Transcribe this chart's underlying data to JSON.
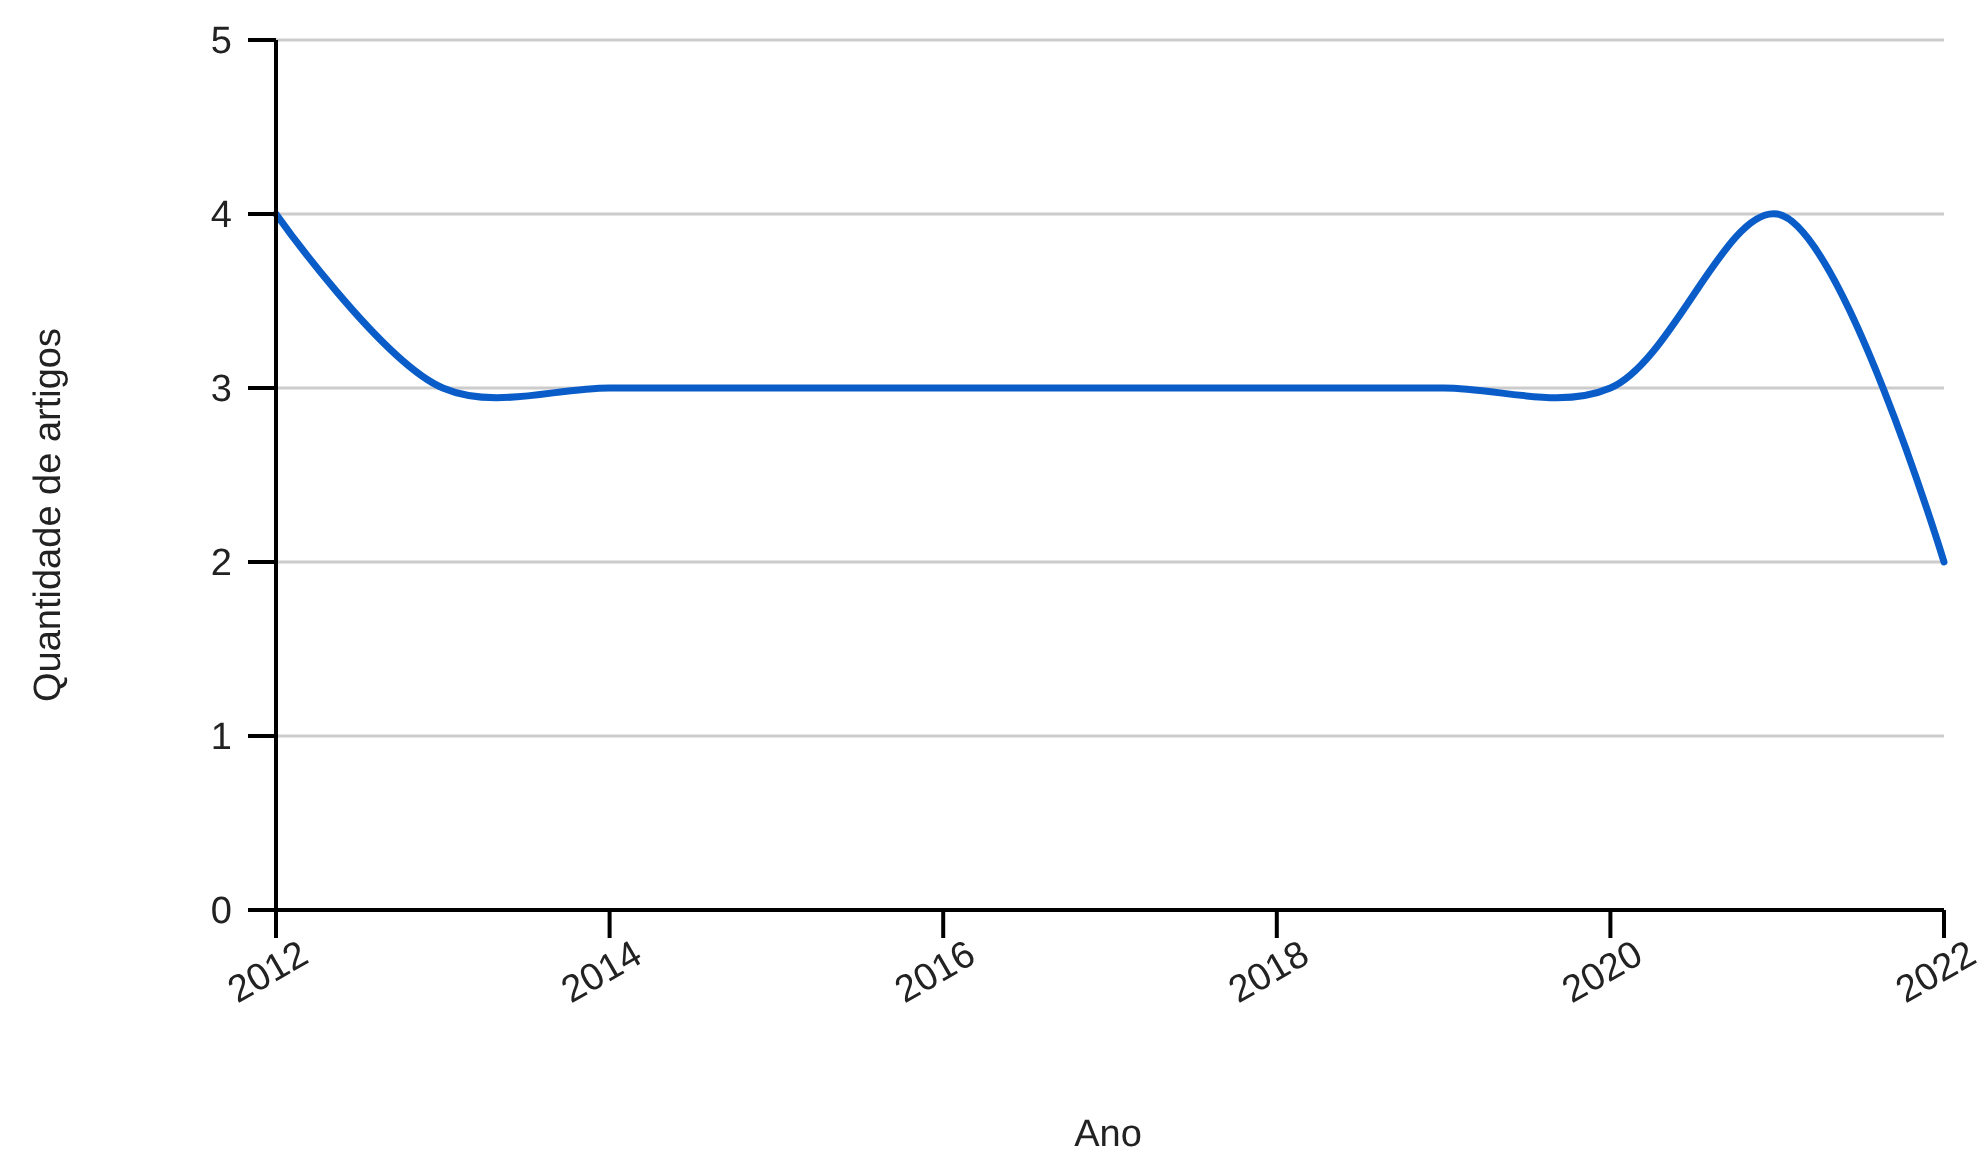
{
  "chart_data": {
    "type": "line",
    "xlabel": "Ano",
    "ylabel": "Quantidade de artigos",
    "x": [
      2012,
      2013,
      2014,
      2015,
      2016,
      2017,
      2018,
      2019,
      2020,
      2021,
      2022
    ],
    "series": [
      {
        "color": "#0a5dc8",
        "values": [
          4,
          3,
          3,
          3,
          3,
          3,
          3,
          3,
          3,
          4,
          2
        ]
      }
    ],
    "xlim": [
      2012,
      2022
    ],
    "xticks": [
      2012,
      2014,
      2016,
      2018,
      2020,
      2022
    ],
    "ylim": [
      0,
      5
    ],
    "yticks": [
      0,
      1,
      2,
      3,
      4,
      5
    ],
    "grid": "y"
  }
}
